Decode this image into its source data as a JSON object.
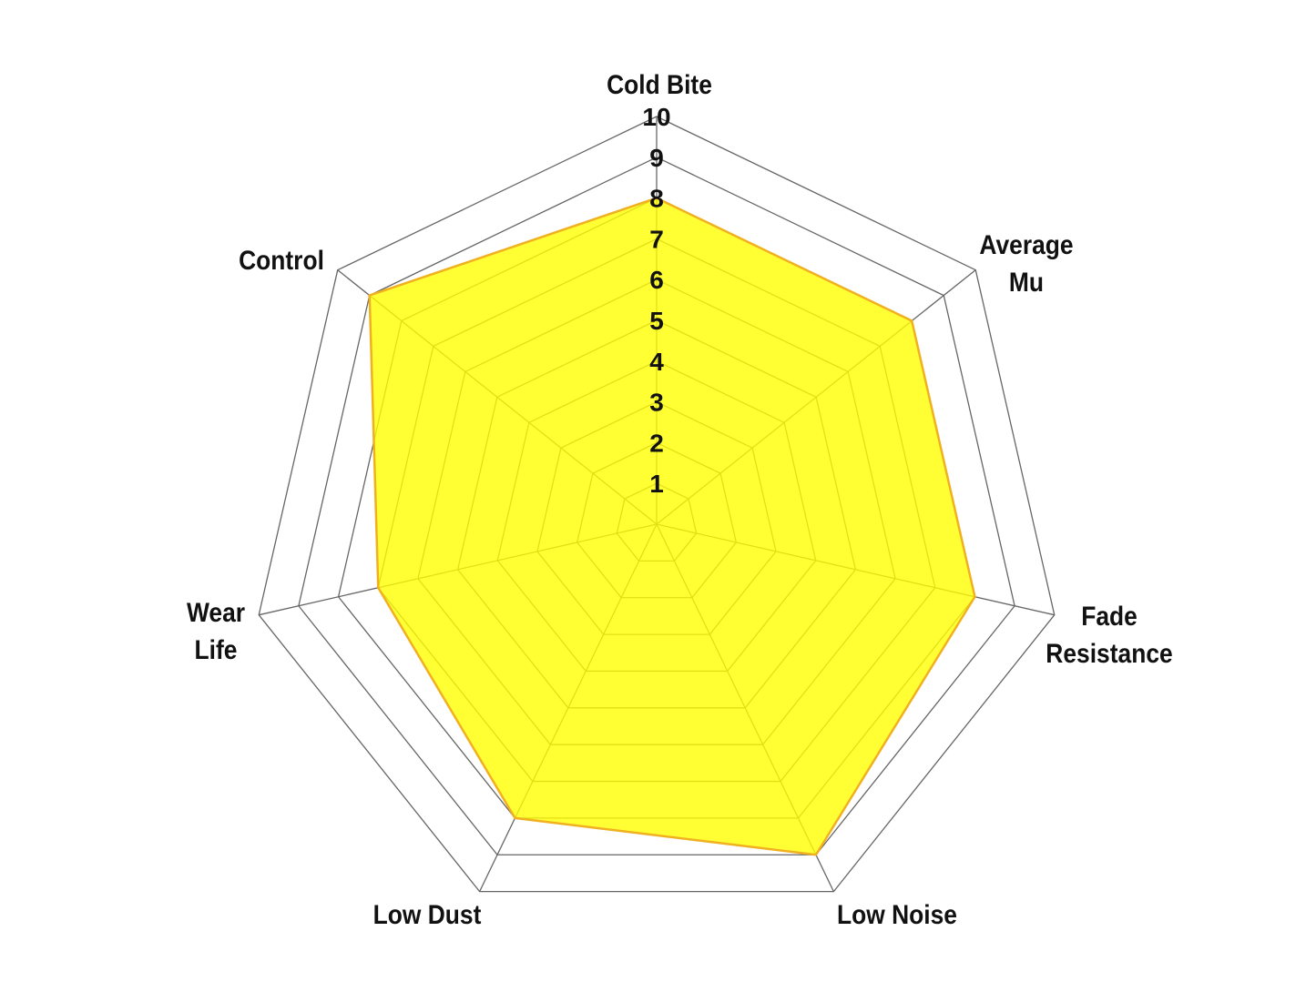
{
  "chart_data": {
    "type": "radar",
    "title": "",
    "categories": [
      [
        "Cold Bite"
      ],
      [
        "Average",
        "Mu"
      ],
      [
        "Fade",
        "Resistance"
      ],
      [
        "Low Noise"
      ],
      [
        "Low Dust"
      ],
      [
        "Wear",
        "Life"
      ],
      [
        "Control"
      ]
    ],
    "values": [
      8,
      8,
      8,
      9,
      8,
      7,
      9
    ],
    "rlim": [
      0,
      10
    ],
    "ticks": [
      "1",
      "2",
      "3",
      "4",
      "5",
      "6",
      "7",
      "8",
      "9",
      "10"
    ],
    "grid": true,
    "colors": {
      "fill": "#ffff00",
      "stroke": "#f0b020",
      "grid": "#666666"
    }
  }
}
